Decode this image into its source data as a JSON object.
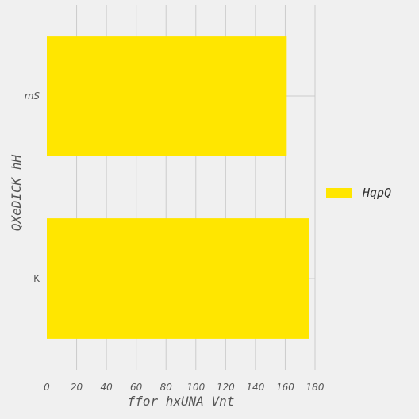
{
  "chart_data": {
    "type": "bar",
    "orientation": "horizontal",
    "title": "",
    "xlabel": "ffor hxUNA Vnt",
    "ylabel": "QXeDICK hH",
    "categories": [
      "mS",
      "K"
    ],
    "series": [
      {
        "name": "HqpQ",
        "values": [
          161,
          176
        ],
        "color": "#ffe600"
      }
    ],
    "xlim": [
      0,
      180
    ],
    "x_ticks": [
      0,
      20,
      40,
      60,
      80,
      100,
      120,
      140,
      160,
      180
    ],
    "x_tick_labels": [
      "0",
      "20",
      "40",
      "60",
      "80",
      "100",
      "120",
      "140",
      "160",
      "180"
    ],
    "grid": true,
    "legend_position": "right",
    "background": "#f0f0f0",
    "grid_color": "#cbcbcb"
  }
}
